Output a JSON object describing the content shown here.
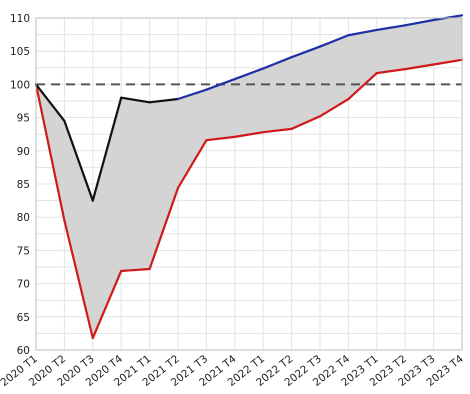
{
  "chart_data": {
    "type": "line",
    "title": "",
    "xlabel": "",
    "ylabel": "",
    "categories": [
      "2020 T1",
      "2020 T2",
      "2020 T3",
      "2020 T4",
      "2021 T1",
      "2021 T2",
      "2021 T3",
      "2021 T4",
      "2022 T1",
      "2022 T2",
      "2022 T3",
      "2022 T4",
      "2023 T1",
      "2023 T2",
      "2023 T3",
      "2023 T4"
    ],
    "ylim": [
      60,
      110
    ],
    "yticks": [
      60,
      65,
      70,
      75,
      80,
      85,
      90,
      95,
      100,
      105,
      110
    ],
    "grid": true,
    "reference_line": {
      "y": 100,
      "style": "dashed",
      "color": "#555555"
    },
    "band": {
      "fill": "#d4d4d4",
      "upper_series": 0,
      "lower_series": 1
    },
    "series": [
      {
        "values": [
          100,
          94.5,
          82.5,
          98,
          97.3,
          97.8,
          99.2,
          100.8,
          102.4,
          104.1,
          105.7,
          107.4,
          108.2,
          108.9,
          109.7,
          110.4
        ],
        "colors_by_segment": [
          "#111111",
          "#111111",
          "#111111",
          "#111111",
          "#111111",
          "#1f2fa8",
          "#1f2fa8",
          "#1f2fa8",
          "#1f2fa8",
          "#1f2fa8",
          "#1f2fa8",
          "#1f2fa8",
          "#1f2fa8",
          "#1f2fa8",
          "#1f2fa8"
        ]
      },
      {
        "values": [
          100,
          79.5,
          61.8,
          71.9,
          72.2,
          84.4,
          91.6,
          92.1,
          92.8,
          93.3,
          95.2,
          97.8,
          101.7,
          102.3,
          103,
          103.7
        ],
        "color": "#d01a1a"
      }
    ]
  }
}
